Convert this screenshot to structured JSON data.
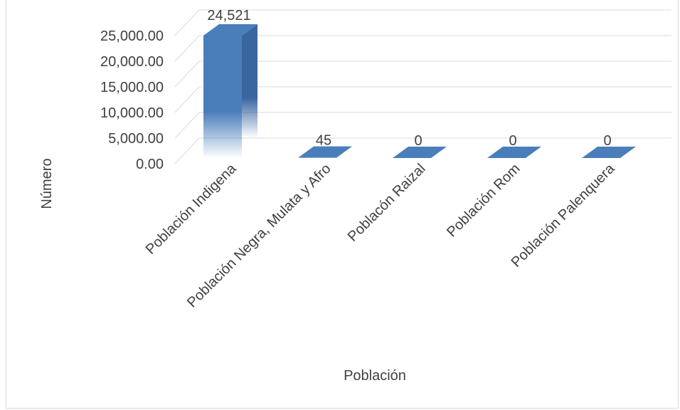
{
  "chart_data": {
    "type": "bar",
    "categories": [
      "Población Indigena",
      "Población Negra, Mulata y Afro",
      "Poblacón Raizal",
      "Población Rom",
      "Población Palenquera"
    ],
    "values": [
      24521,
      45,
      0,
      0,
      0
    ],
    "data_labels": [
      "24,521",
      "45",
      "0",
      "0",
      "0"
    ],
    "xlabel": "Población",
    "ylabel": "Número",
    "y_ticks": [
      "0.00",
      "5,000.00",
      "10,000.00",
      "15,000.00",
      "20,000.00",
      "25,000.00"
    ],
    "ylim": [
      0,
      27500
    ],
    "grid": true,
    "bar_color": "#4a7ebb",
    "bar_side_color": "#3a66a0",
    "bar_top_color": "#5b8fd0",
    "grid_color": "#d9d9d9"
  }
}
